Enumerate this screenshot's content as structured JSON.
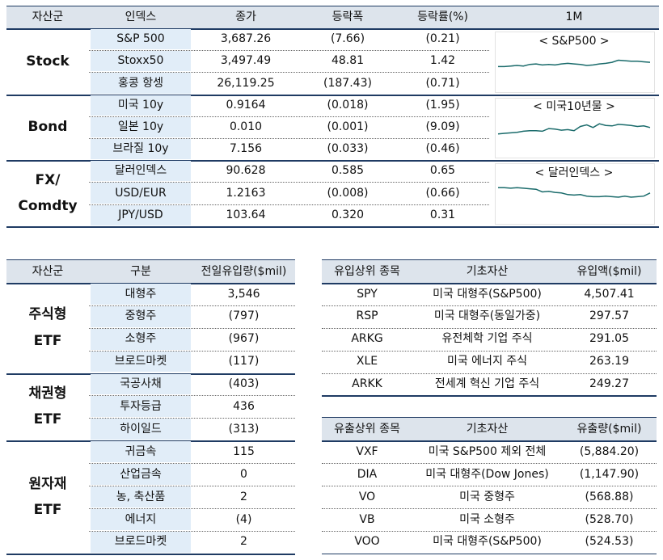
{
  "top_table": {
    "header": [
      "자산군",
      "인덱스",
      "종가",
      "등락폭",
      "등락률(%)",
      "1M"
    ],
    "groups": [
      {
        "name": [
          "Stock"
        ],
        "rows": [
          [
            "S&P 500",
            "3,687.26",
            "(7.66)",
            "(0.21)"
          ],
          [
            "Stoxx50",
            "3,497.49",
            "48.81",
            "1.42"
          ],
          [
            "홍콩 항셍",
            "26,119.25",
            "(187.43)",
            "(0.71)"
          ]
        ],
        "spark": {
          "label": "< S&P500 >",
          "values": [
            40,
            40,
            41,
            42,
            41,
            44,
            45,
            43,
            44,
            43,
            45,
            46,
            45,
            44,
            42,
            43,
            45,
            46,
            48,
            52,
            51,
            50,
            50,
            49,
            48
          ]
        }
      },
      {
        "name": [
          "Bond"
        ],
        "rows": [
          [
            "미국 10y",
            "0.9164",
            "(0.018)",
            "(1.95)"
          ],
          [
            "일본 10y",
            "0.010",
            "(0.001)",
            "(9.09)"
          ],
          [
            "브라질 10y",
            "7.156",
            "(0.033)",
            "(0.46)"
          ]
        ],
        "spark": {
          "label": "< 미국10년물 >",
          "values": [
            38,
            39,
            40,
            41,
            43,
            44,
            44,
            43,
            48,
            47,
            45,
            46,
            44,
            52,
            55,
            50,
            57,
            54,
            53,
            56,
            55,
            54,
            52,
            53,
            50
          ]
        }
      },
      {
        "name": [
          "FX/",
          "Comdty"
        ],
        "rows": [
          [
            "달러인덱스",
            "90.628",
            "0.585",
            "0.65"
          ],
          [
            "USD/EUR",
            "1.2163",
            "(0.008)",
            "(0.66)"
          ],
          [
            "JPY/USD",
            "103.64",
            "0.320",
            "0.31"
          ]
        ],
        "spark": {
          "label": "< 달러인덱스 >",
          "values": [
            60,
            60,
            59,
            60,
            59,
            58,
            57,
            52,
            53,
            51,
            50,
            47,
            46,
            47,
            44,
            43,
            43,
            44,
            43,
            42,
            44,
            42,
            43,
            44,
            50
          ]
        }
      }
    ]
  },
  "etf_table": {
    "header": [
      "자산군",
      "구분",
      "전일유입량($mil)"
    ],
    "groups": [
      {
        "name": [
          "주식형",
          "ETF"
        ],
        "rows": [
          [
            "대형주",
            "3,546"
          ],
          [
            "중형주",
            "(797)"
          ],
          [
            "소형주",
            "(967)"
          ],
          [
            "브로드마켓",
            "(117)"
          ]
        ]
      },
      {
        "name": [
          "채권형",
          "ETF"
        ],
        "rows": [
          [
            "국공사채",
            "(403)"
          ],
          [
            "투자등급",
            "436"
          ],
          [
            "하이일드",
            "(313)"
          ]
        ]
      },
      {
        "name": [
          "원자재",
          "ETF"
        ],
        "rows": [
          [
            "귀금속",
            "115"
          ],
          [
            "산업금속",
            "0"
          ],
          [
            "농, 축산품",
            "2"
          ],
          [
            "에너지",
            "(4)"
          ],
          [
            "브로드마켓",
            "2"
          ]
        ]
      }
    ]
  },
  "inflow_table": {
    "header": [
      "유입상위 종목",
      "기초자산",
      "유입액($mil)"
    ],
    "rows": [
      [
        "SPY",
        "미국 대형주(S&P500)",
        "4,507.41"
      ],
      [
        "RSP",
        "미국 대형주(동일가중)",
        "297.57"
      ],
      [
        "ARKG",
        "유전체학 기업 주식",
        "291.05"
      ],
      [
        "XLE",
        "미국 에너지 주식",
        "263.19"
      ],
      [
        "ARKK",
        "전세계 혁신 기업 주식",
        "249.27"
      ]
    ]
  },
  "outflow_table": {
    "header": [
      "유출상위 종목",
      "기초자산",
      "유출량($mil)"
    ],
    "rows": [
      [
        "VXF",
        "미국 S&P500 제외 전체",
        "(5,884.20)"
      ],
      [
        "DIA",
        "미국 대형주(Dow Jones)",
        "(1,147.90)"
      ],
      [
        "VO",
        "미국 중형주",
        "(568.88)"
      ],
      [
        "VB",
        "미국 소형주",
        "(528.70)"
      ],
      [
        "VOO",
        "미국 대형주(S&P500)",
        "(524.53)"
      ]
    ]
  }
}
